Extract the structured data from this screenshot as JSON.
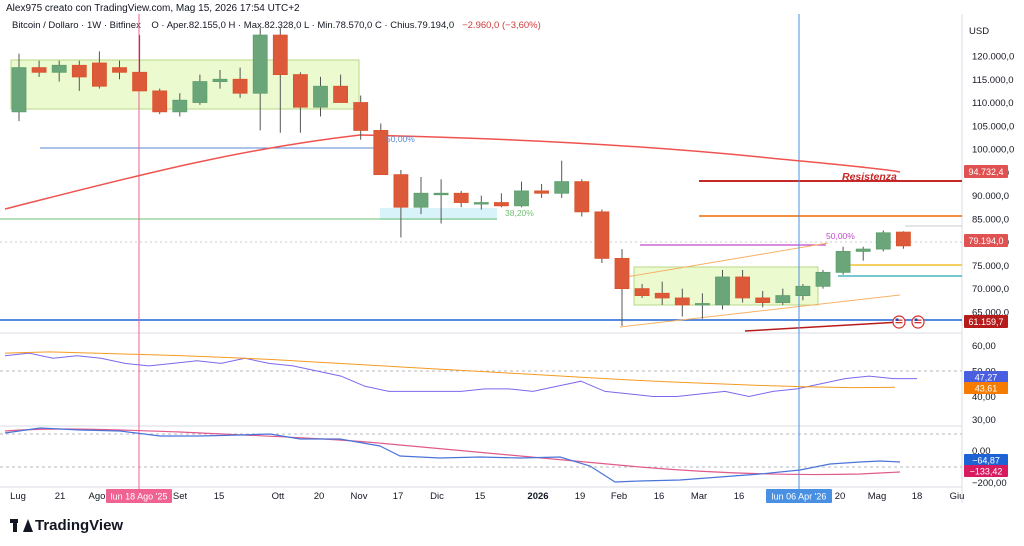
{
  "header": {
    "author_line": "Alex975 creato con TradingView.com, Mag 15, 2026 17:54 UTC+2",
    "symbol": "Bitcoin / Dollaro · 1W · Bitfinex",
    "ohlc": "O · Aper.82.155,0  H · Max.82.328,0  L · Min.78.570,0  C · Chius.79.194,0",
    "change": "−2.960,0 (−3,60%)"
  },
  "footer": {
    "brand": "TradingView"
  },
  "chart_data": {
    "type": "candlestick",
    "currency_label": "USD",
    "ylim_price": [
      59000,
      126000
    ],
    "price_ticks": [
      "120.000,0",
      "115.000,0",
      "110.000,0",
      "105.000,0",
      "100.000,0",
      "95.000,0",
      "90.000,0",
      "85.000,0",
      "80.000,0",
      "75.000,0",
      "70.000,0",
      "65.000,0"
    ],
    "price_tick_values": [
      120000,
      115000,
      110000,
      105000,
      100000,
      95000,
      90000,
      85000,
      80000,
      75000,
      70000,
      65000
    ],
    "oscillator1_ticks": [
      "60,00",
      "50,00",
      "40,00"
    ],
    "oscillator1_tick_values": [
      60,
      50,
      40
    ],
    "oscillator2_ticks": [
      "30,00",
      "0,00",
      "−200,00"
    ],
    "x_ticks": [
      "Lug",
      "21",
      "Ago",
      "Set",
      "15",
      "Ott",
      "20",
      "Nov",
      "17",
      "Dic",
      "15",
      "2026",
      "19",
      "Feb",
      "16",
      "Mar",
      "16",
      "20",
      "Mag",
      "18",
      "Giu"
    ],
    "candles": [
      {
        "o": 108000,
        "h": 120500,
        "l": 106000,
        "c": 117500
      },
      {
        "o": 117500,
        "h": 119000,
        "l": 115500,
        "c": 116500
      },
      {
        "o": 116500,
        "h": 119000,
        "l": 114500,
        "c": 118000
      },
      {
        "o": 118000,
        "h": 119000,
        "l": 112500,
        "c": 115500
      },
      {
        "o": 118500,
        "h": 121000,
        "l": 113000,
        "c": 113500
      },
      {
        "o": 117500,
        "h": 119000,
        "l": 115000,
        "c": 116500
      },
      {
        "o": 116500,
        "h": 124500,
        "l": 112500,
        "c": 112500
      },
      {
        "o": 112500,
        "h": 113000,
        "l": 107500,
        "c": 108000
      },
      {
        "o": 108000,
        "h": 112000,
        "l": 107000,
        "c": 110500
      },
      {
        "o": 110000,
        "h": 116000,
        "l": 109500,
        "c": 114500
      },
      {
        "o": 114500,
        "h": 117000,
        "l": 113000,
        "c": 115000
      },
      {
        "o": 115000,
        "h": 117500,
        "l": 111000,
        "c": 112000
      },
      {
        "o": 112000,
        "h": 126000,
        "l": 104000,
        "c": 124500
      },
      {
        "o": 124500,
        "h": 126000,
        "l": 103500,
        "c": 116000
      },
      {
        "o": 116000,
        "h": 116500,
        "l": 103500,
        "c": 109000
      },
      {
        "o": 109000,
        "h": 115500,
        "l": 107000,
        "c": 113500
      },
      {
        "o": 113500,
        "h": 116000,
        "l": 110000,
        "c": 110000
      },
      {
        "o": 110000,
        "h": 111500,
        "l": 102000,
        "c": 104000
      },
      {
        "o": 104000,
        "h": 105500,
        "l": 94500,
        "c": 94500
      },
      {
        "o": 94500,
        "h": 95500,
        "l": 81000,
        "c": 87500
      },
      {
        "o": 87500,
        "h": 94000,
        "l": 86000,
        "c": 90500
      },
      {
        "o": 90500,
        "h": 93500,
        "l": 84000,
        "c": 90500
      },
      {
        "o": 90500,
        "h": 91000,
        "l": 87500,
        "c": 88500
      },
      {
        "o": 88500,
        "h": 90000,
        "l": 87000,
        "c": 88500
      },
      {
        "o": 88500,
        "h": 90500,
        "l": 87500,
        "c": 87800
      },
      {
        "o": 87800,
        "h": 93000,
        "l": 87500,
        "c": 91000
      },
      {
        "o": 91000,
        "h": 92500,
        "l": 89500,
        "c": 90500
      },
      {
        "o": 90500,
        "h": 97500,
        "l": 89500,
        "c": 93000
      },
      {
        "o": 93000,
        "h": 93500,
        "l": 85500,
        "c": 86500
      },
      {
        "o": 86500,
        "h": 87000,
        "l": 75500,
        "c": 76500
      },
      {
        "o": 76500,
        "h": 78500,
        "l": 62000,
        "c": 70000
      },
      {
        "o": 70000,
        "h": 71000,
        "l": 68000,
        "c": 68500
      },
      {
        "o": 69000,
        "h": 71500,
        "l": 66500,
        "c": 68000
      },
      {
        "o": 68000,
        "h": 70000,
        "l": 64000,
        "c": 66500
      },
      {
        "o": 66500,
        "h": 69000,
        "l": 63500,
        "c": 66800
      },
      {
        "o": 66500,
        "h": 74000,
        "l": 65500,
        "c": 72500
      },
      {
        "o": 72500,
        "h": 74000,
        "l": 67000,
        "c": 68000
      },
      {
        "o": 68000,
        "h": 69500,
        "l": 66000,
        "c": 67000
      },
      {
        "o": 67000,
        "h": 70000,
        "l": 66500,
        "c": 68500
      },
      {
        "o": 68500,
        "h": 71000,
        "l": 67500,
        "c": 70500
      },
      {
        "o": 70500,
        "h": 74000,
        "l": 70000,
        "c": 73500
      },
      {
        "o": 73500,
        "h": 79000,
        "l": 73000,
        "c": 78000
      },
      {
        "o": 78000,
        "h": 79000,
        "l": 76000,
        "c": 78500
      },
      {
        "o": 78500,
        "h": 82500,
        "l": 78000,
        "c": 82000
      },
      {
        "o": 82155,
        "h": 82328,
        "l": 78570,
        "c": 79194
      }
    ],
    "moving_average": [
      {
        "i": 0,
        "v": 87000
      },
      {
        "i": 6,
        "v": 92000
      },
      {
        "i": 12,
        "v": 97500
      },
      {
        "i": 16,
        "v": 99500
      },
      {
        "i": 20,
        "v": 99400
      },
      {
        "i": 26,
        "v": 98800
      },
      {
        "i": 30,
        "v": 98000
      },
      {
        "i": 36,
        "v": 96800
      },
      {
        "i": 40,
        "v": 95800
      },
      {
        "i": 44,
        "v": 94500
      }
    ],
    "horizontal_levels": [
      {
        "name": "Resistenza",
        "value": 92500,
        "color": "#c62828"
      },
      {
        "value": 85300,
        "color": "#ef6c00"
      },
      {
        "value": 62200,
        "color": "#1e63d6"
      }
    ],
    "fib_labels": [
      "50,00%",
      "38,20%",
      "50,00%"
    ],
    "annotation": "Resistenza",
    "price_labels": [
      {
        "text": "94.732,4",
        "value": 94732,
        "color": "#e05252"
      },
      {
        "text": "79.194,0",
        "value": 79194,
        "color": "#e05252"
      },
      {
        "text": "61.159,7",
        "value": 61159,
        "color": "#b71c1c"
      }
    ],
    "oscillator1": {
      "series_blue": [
        56,
        57,
        55,
        56,
        55,
        53,
        52,
        53,
        54,
        53,
        55,
        53,
        52,
        50,
        48,
        44,
        42,
        42,
        42,
        42,
        43,
        43,
        42,
        44,
        46,
        42,
        41,
        40,
        40,
        41,
        42,
        40,
        42,
        43,
        45,
        47,
        48,
        47,
        47
      ],
      "series_orange": [
        57,
        57.5,
        57,
        56.5,
        56,
        55.3,
        54.5,
        53.5,
        52.5,
        51.5,
        50.5,
        49.5,
        48.5,
        47.5,
        46.5,
        45.7,
        45,
        44.3,
        43.8,
        43.5,
        43.6
      ],
      "labels": [
        {
          "text": "47,27",
          "color": "#4a5ee0"
        },
        {
          "text": "43,61",
          "color": "#f57c00"
        }
      ]
    },
    "oscillator2": {
      "labels": [
        {
          "text": "−64,87",
          "color": "#1e63d6"
        },
        {
          "text": "−133,42",
          "color": "#d81b60"
        }
      ]
    },
    "date_labels": [
      {
        "text": "lun 18 Ago '25",
        "color": "#f06292"
      },
      {
        "text": "lun 06 Apr '26",
        "color": "#4a90e2"
      }
    ]
  }
}
